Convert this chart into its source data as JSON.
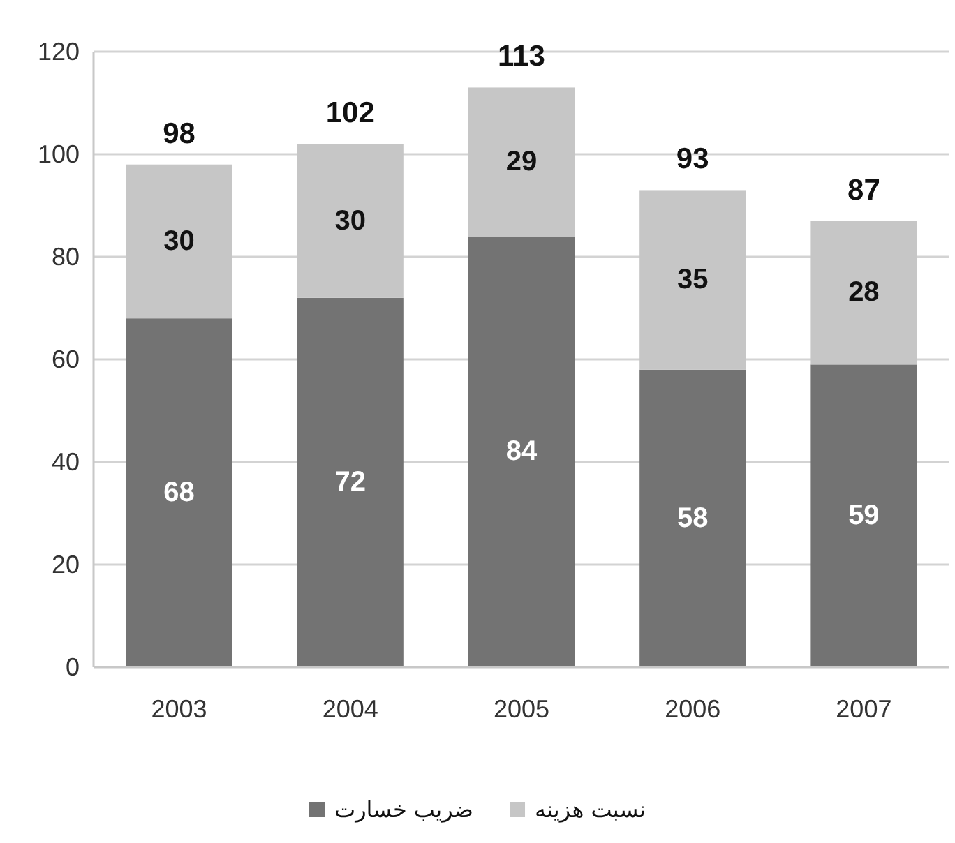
{
  "chart_data": {
    "type": "bar",
    "stacked": true,
    "categories": [
      "2003",
      "2004",
      "2005",
      "2006",
      "2007"
    ],
    "series": [
      {
        "name": "ضریب خسارت",
        "color": "#737373",
        "values": [
          68,
          72,
          84,
          58,
          59
        ]
      },
      {
        "name": "نسبت هزینه",
        "color": "#c6c6c6",
        "values": [
          30,
          30,
          29,
          35,
          28
        ]
      }
    ],
    "ylim": [
      0,
      120
    ],
    "yticks": [
      0,
      20,
      40,
      60,
      80,
      100,
      120
    ],
    "grid": "y",
    "legend": "bottom",
    "data_labels": true,
    "totals": [
      "98",
      "102",
      "113",
      "93",
      "87"
    ]
  }
}
